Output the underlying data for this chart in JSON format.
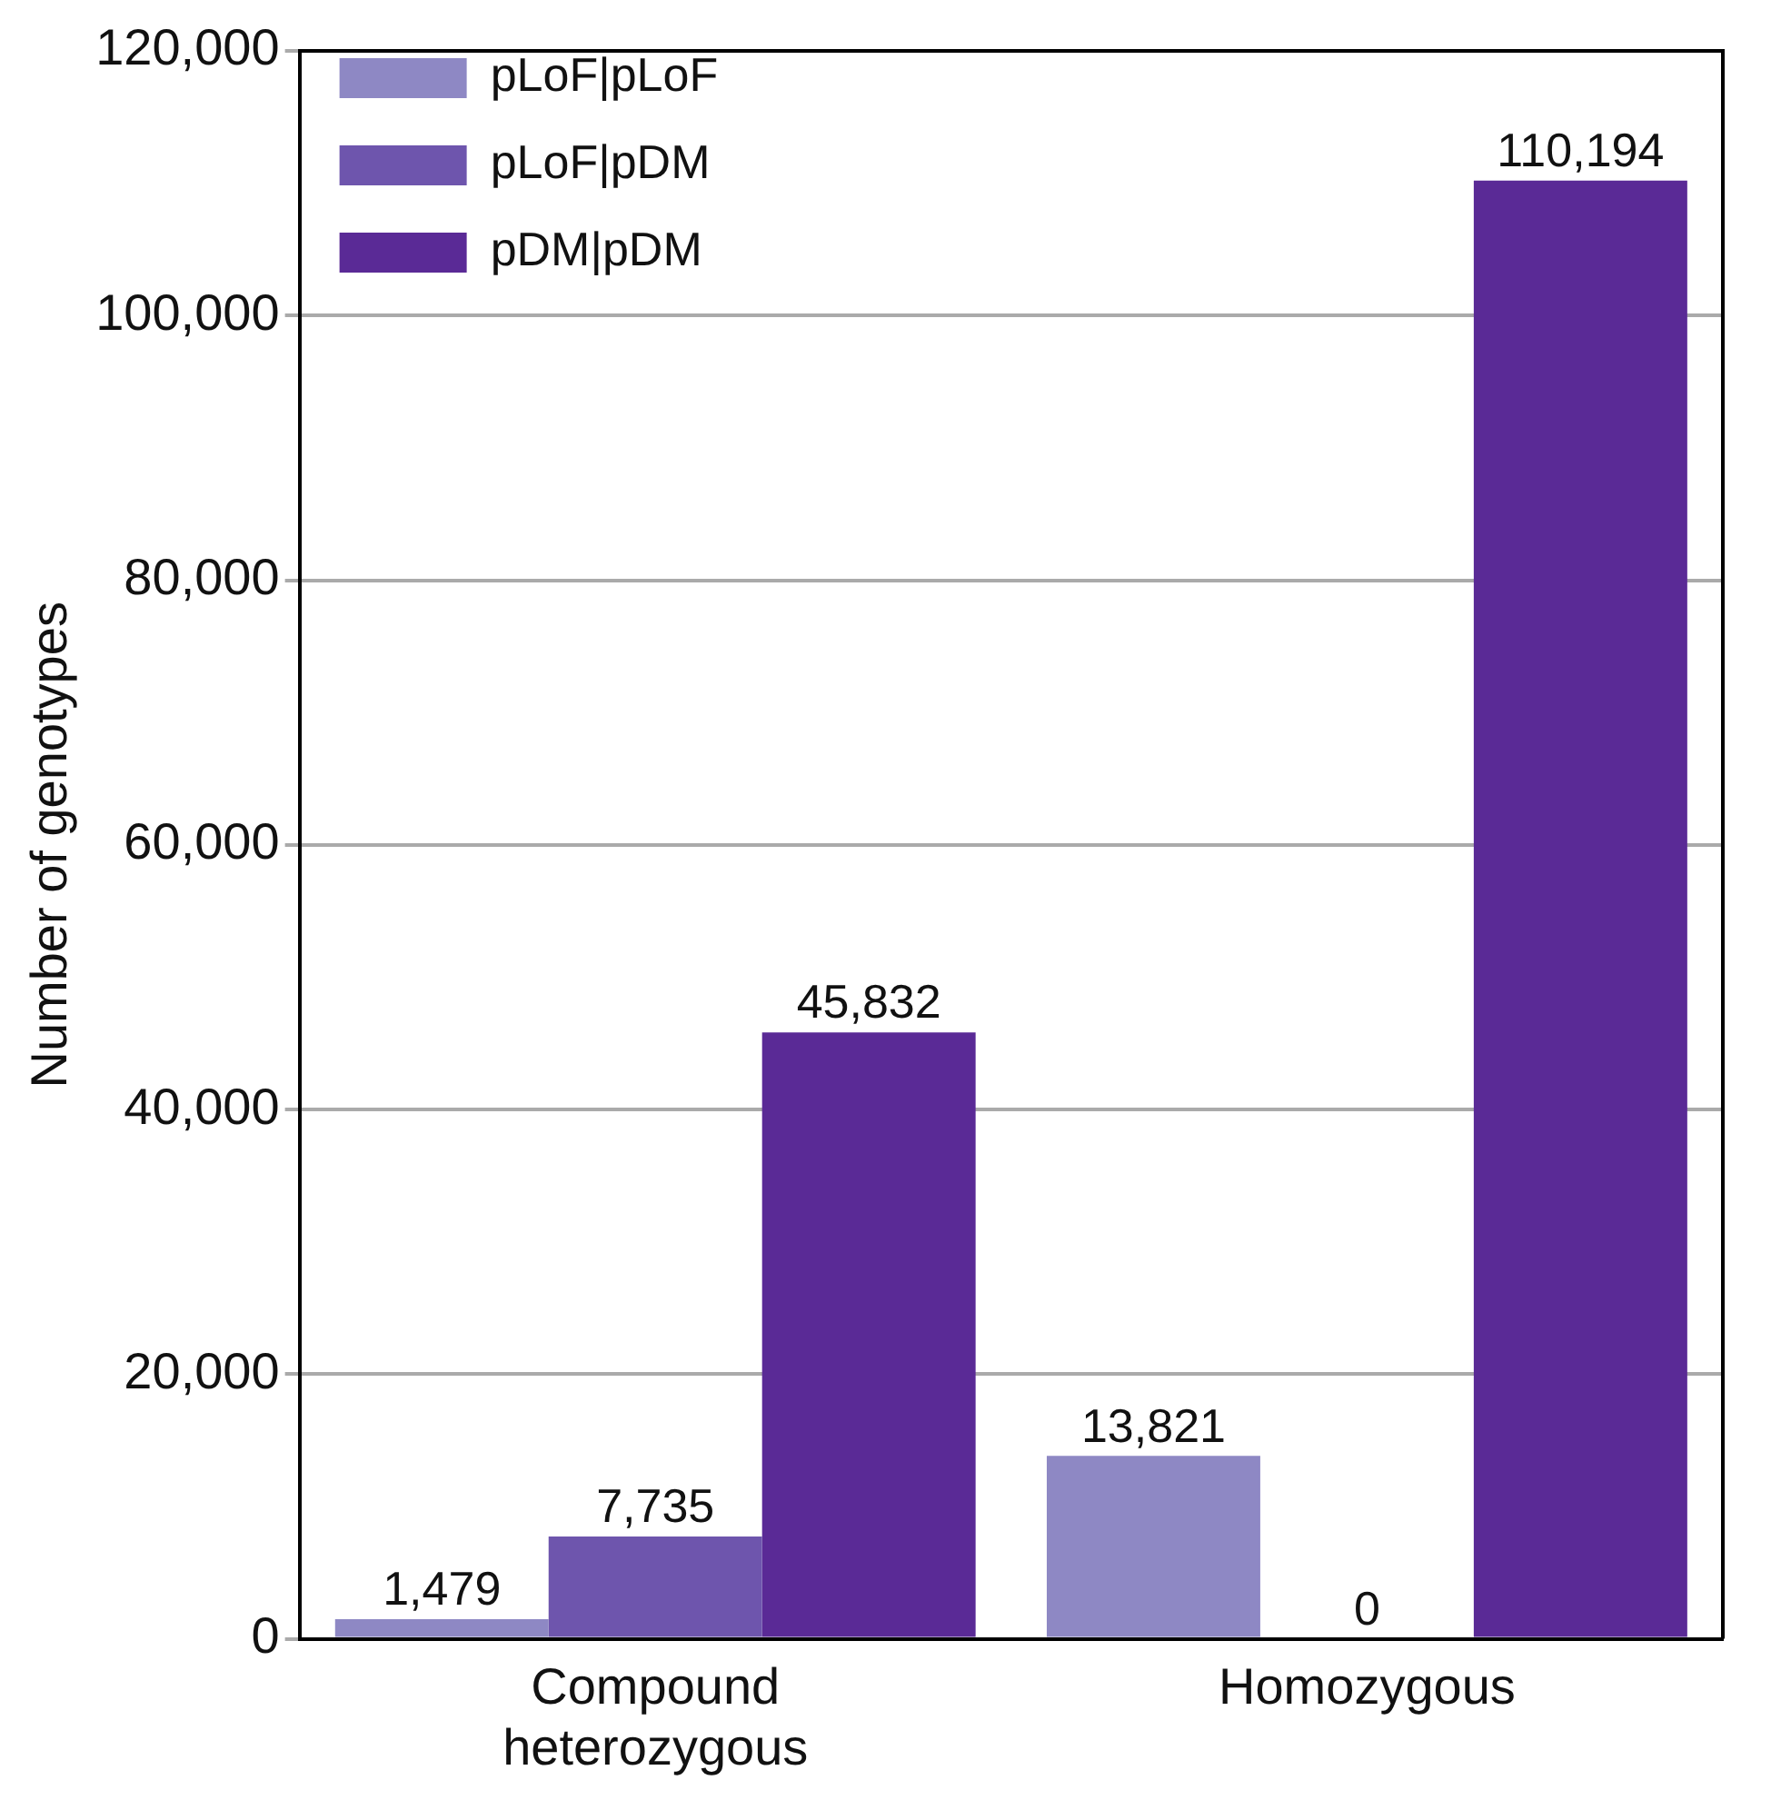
{
  "chart_data": {
    "type": "bar",
    "ylabel": "Number of genotypes",
    "categories": [
      "Compound heterozygous",
      "Homozygous"
    ],
    "series": [
      {
        "name": "pLoF|pLoF",
        "color": "#8e88c4",
        "values": [
          1479,
          13821
        ],
        "value_labels": [
          "1,479",
          "13,821"
        ]
      },
      {
        "name": "pLoF|pDM",
        "color": "#6e55ad",
        "values": [
          7735,
          0
        ],
        "value_labels": [
          "7,735",
          "0"
        ]
      },
      {
        "name": "pDM|pDM",
        "color": "#5a2a96",
        "values": [
          45832,
          110194
        ],
        "value_labels": [
          "45,832",
          "110,194"
        ]
      }
    ],
    "ylim": [
      0,
      120000
    ],
    "yticks": [
      0,
      {
        "value": 20000,
        "label": "20,000"
      },
      {
        "value": 40000,
        "label": "40,000"
      },
      {
        "value": 60000,
        "label": "60,000"
      },
      {
        "value": 80000,
        "label": "80,000"
      },
      {
        "value": 100000,
        "label": "100,000"
      },
      {
        "value": 120000,
        "label": "120,000"
      }
    ],
    "grid": "y",
    "legend": "top left"
  }
}
